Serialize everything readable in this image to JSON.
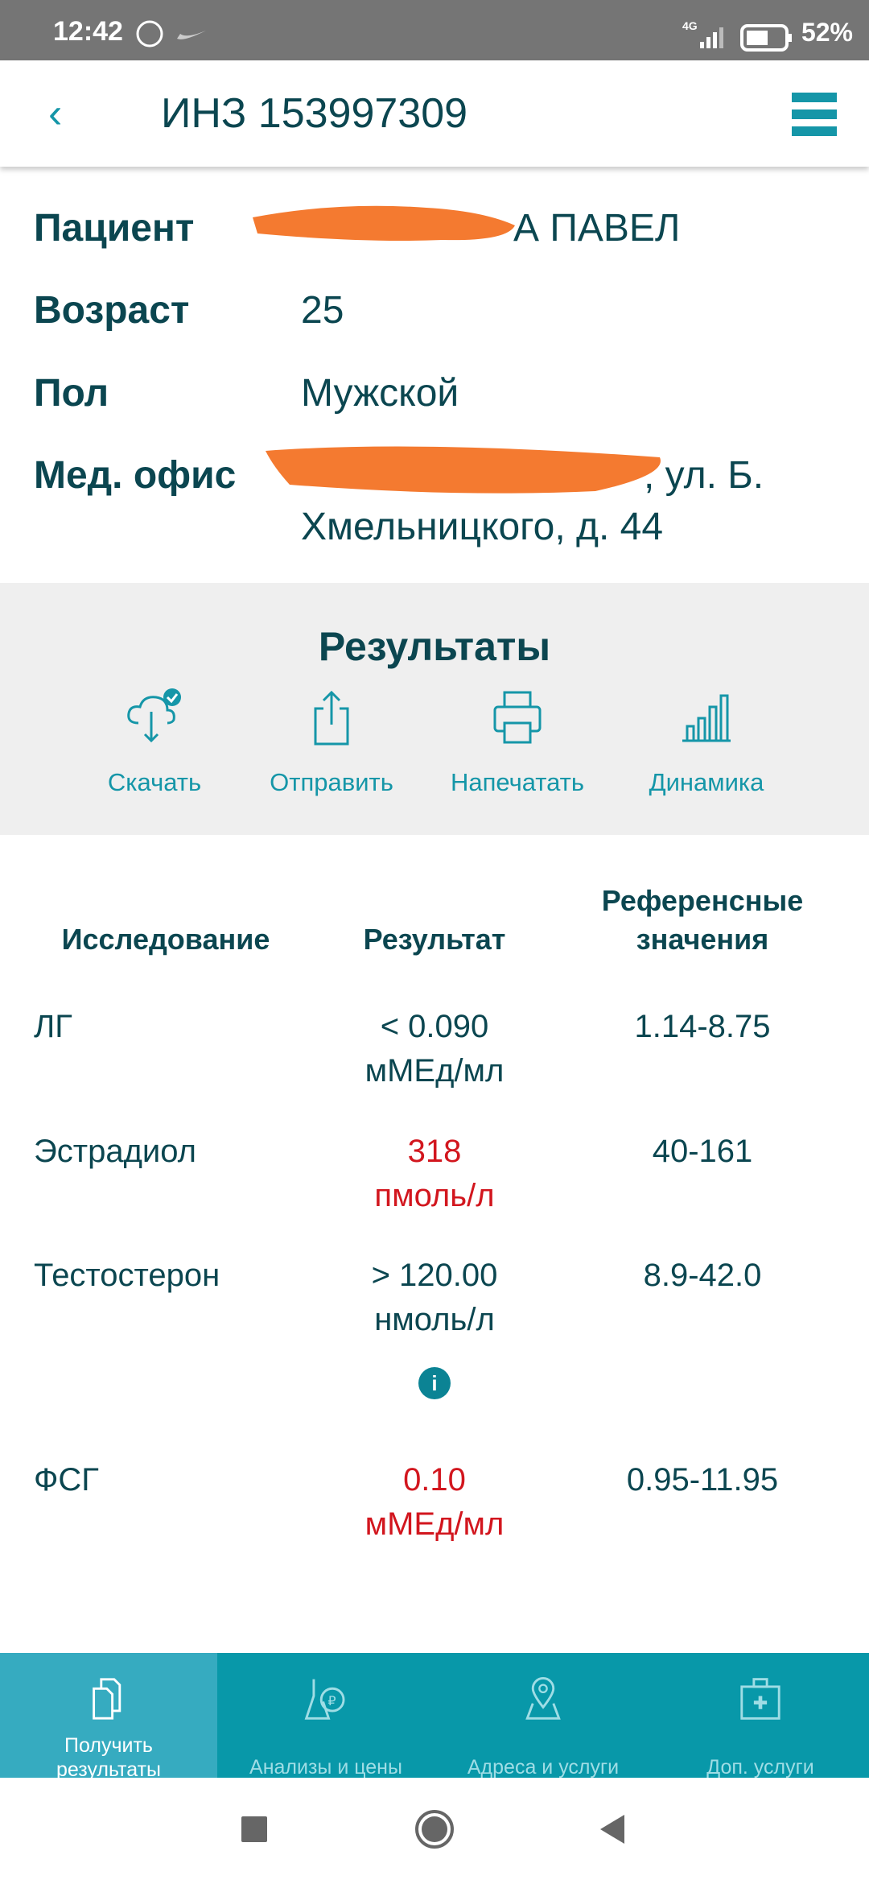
{
  "status_bar": {
    "time": "12:42",
    "network": "4G",
    "battery": "52%"
  },
  "header": {
    "title": "ИНЗ 153997309",
    "back_icon": "chevron-left-icon",
    "menu_icon": "hamburger-icon"
  },
  "patient": {
    "patient_label": "Пациент",
    "patient_value": "А ПАВЕЛ",
    "age_label": "Возраст",
    "age_value": "25",
    "sex_label": "Пол",
    "sex_value": "Мужской",
    "office_label": "Мед. офис",
    "office_line1": ", ул. Б.",
    "office_line2": "Хмельницкого, д. 44"
  },
  "results": {
    "title": "Результаты",
    "actions": [
      {
        "label": "Скачать",
        "icon": "cloud-download-icon"
      },
      {
        "label": "Отправить",
        "icon": "share-icon"
      },
      {
        "label": "Напечатать",
        "icon": "printer-icon"
      },
      {
        "label": "Динамика",
        "icon": "bar-chart-icon"
      }
    ]
  },
  "table": {
    "headers": [
      "Исследование",
      "Результат",
      "Референсные",
      "значения"
    ],
    "rows": [
      {
        "name": "ЛГ",
        "value": "< 0.090",
        "unit": "мМЕд/мл",
        "ref": "1.14-8.75",
        "abnormal": false
      },
      {
        "name": "Эстрадиол",
        "value": "318",
        "unit": "пмоль/л",
        "ref": "40-161",
        "abnormal": true
      },
      {
        "name": "Тестостерон",
        "value": "> 120.00",
        "unit": "нмоль/л",
        "ref": "8.9-42.0",
        "abnormal": false
      },
      {
        "name": "ФСГ",
        "value": "0.10",
        "unit": "мМЕд/мл",
        "ref": "0.95-11.95",
        "abnormal": true
      }
    ],
    "info_icon": "i"
  },
  "colors": {
    "accent": "#1596a8",
    "text": "#0b4650",
    "abnormal": "#d2161e",
    "nav_bg": "#0898a9",
    "nav_active": "#36abc0",
    "redaction": "#f47a30"
  },
  "bottom_nav": [
    {
      "label1": "Получить",
      "label2": "результаты",
      "icon": "documents-icon",
      "active": true
    },
    {
      "label1": "Анализы и цены",
      "icon": "flask-ruble-icon",
      "active": false
    },
    {
      "label1": "Адреса и услуги",
      "icon": "map-pin-icon",
      "active": false
    },
    {
      "label1": "Доп. услуги",
      "icon": "first-aid-kit-icon",
      "active": false
    }
  ]
}
